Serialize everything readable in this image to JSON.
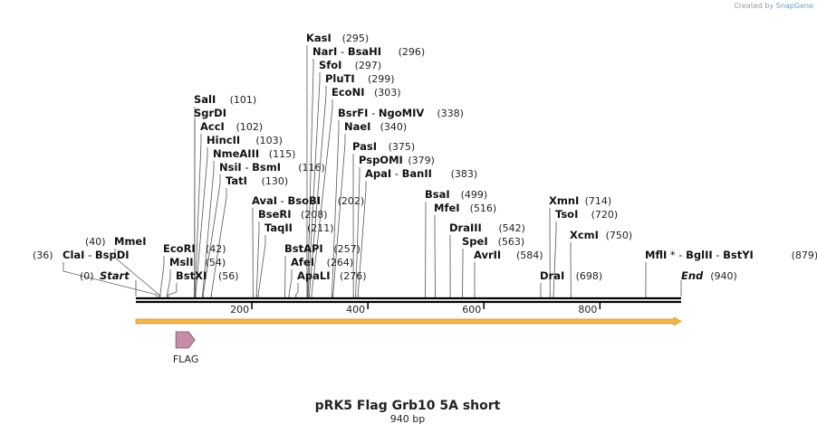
{
  "header": {
    "credit_prefix": "Created by",
    "credit_brand": "SnapGene"
  },
  "sequence": {
    "title": "pRK5 Flag Grb10 5A short",
    "length_label": "940 bp",
    "length_bp": 940
  },
  "axis": {
    "ticks": [
      200,
      400,
      600,
      800
    ]
  },
  "features": [
    {
      "name": "FLAG",
      "start": 58,
      "end": 81,
      "color": "#c48fa6"
    }
  ],
  "sites": [
    {
      "id": "start",
      "parts": [
        {
          "text": "Start",
          "italic": true
        }
      ],
      "position_label": "(0)",
      "bp": 0
    },
    {
      "id": "clai-bspdi",
      "parts": [
        {
          "text": "ClaI"
        },
        {
          "text": " - ",
          "plain": true
        },
        {
          "text": "BspDI"
        }
      ],
      "position_label": "(36)",
      "bp": 36
    },
    {
      "id": "mmei",
      "parts": [
        {
          "text": "MmeI"
        }
      ],
      "position_label": "(40)",
      "bp": 40
    },
    {
      "id": "ecori",
      "parts": [
        {
          "text": "EcoRI"
        }
      ],
      "position_label": "(42)",
      "bp": 42
    },
    {
      "id": "msli",
      "parts": [
        {
          "text": "MslI"
        }
      ],
      "position_label": "(54)",
      "bp": 54
    },
    {
      "id": "bstxi",
      "parts": [
        {
          "text": "BstXI"
        }
      ],
      "position_label": "(56)",
      "bp": 56
    },
    {
      "id": "sali",
      "parts": [
        {
          "text": "SalI"
        }
      ],
      "position_label": "(101)",
      "bp": 101
    },
    {
      "id": "sgrdi",
      "parts": [
        {
          "text": "SgrDI"
        }
      ],
      "position_label": "",
      "bp": 101
    },
    {
      "id": "acci",
      "parts": [
        {
          "text": "AccI"
        }
      ],
      "position_label": "(102)",
      "bp": 102
    },
    {
      "id": "hincii",
      "parts": [
        {
          "text": "HincII"
        }
      ],
      "position_label": "(103)",
      "bp": 103
    },
    {
      "id": "nmeaiii",
      "parts": [
        {
          "text": "NmeAIII"
        }
      ],
      "position_label": "(115)",
      "bp": 115
    },
    {
      "id": "nsii-bsmi",
      "parts": [
        {
          "text": "NsiI"
        },
        {
          "text": " - ",
          "plain": true
        },
        {
          "text": "BsmI"
        }
      ],
      "position_label": "(116)",
      "bp": 116
    },
    {
      "id": "tati",
      "parts": [
        {
          "text": "TatI"
        }
      ],
      "position_label": "(130)",
      "bp": 130
    },
    {
      "id": "avai-bsobi",
      "parts": [
        {
          "text": "AvaI"
        },
        {
          "text": " - ",
          "plain": true
        },
        {
          "text": "BsoBI"
        }
      ],
      "position_label": "(202)",
      "bp": 202
    },
    {
      "id": "bseri",
      "parts": [
        {
          "text": "BseRI"
        }
      ],
      "position_label": "(208)",
      "bp": 208
    },
    {
      "id": "taqii",
      "parts": [
        {
          "text": "TaqII"
        }
      ],
      "position_label": "(211)",
      "bp": 211
    },
    {
      "id": "bstapi",
      "parts": [
        {
          "text": "BstAPI"
        }
      ],
      "position_label": "(257)",
      "bp": 257
    },
    {
      "id": "afei",
      "parts": [
        {
          "text": "AfeI"
        }
      ],
      "position_label": "(264)",
      "bp": 264
    },
    {
      "id": "apali",
      "parts": [
        {
          "text": "ApaLI"
        }
      ],
      "position_label": "(276)",
      "bp": 276
    },
    {
      "id": "kasi",
      "parts": [
        {
          "text": "KasI"
        }
      ],
      "position_label": "(295)",
      "bp": 295
    },
    {
      "id": "nari-bsahi",
      "parts": [
        {
          "text": "NarI"
        },
        {
          "text": " - ",
          "plain": true
        },
        {
          "text": "BsaHI"
        }
      ],
      "position_label": "(296)",
      "bp": 296
    },
    {
      "id": "sfoi",
      "parts": [
        {
          "text": "SfoI"
        }
      ],
      "position_label": "(297)",
      "bp": 297
    },
    {
      "id": "pluti",
      "parts": [
        {
          "text": "PluTI"
        }
      ],
      "position_label": "(299)",
      "bp": 299
    },
    {
      "id": "econi",
      "parts": [
        {
          "text": "EcoNI"
        }
      ],
      "position_label": "(303)",
      "bp": 303
    },
    {
      "id": "bsrfi-ngomiv",
      "parts": [
        {
          "text": "BsrFI"
        },
        {
          "text": " - ",
          "plain": true
        },
        {
          "text": "NgoMIV"
        }
      ],
      "position_label": "(338)",
      "bp": 338
    },
    {
      "id": "naei",
      "parts": [
        {
          "text": "NaeI"
        }
      ],
      "position_label": "(340)",
      "bp": 340
    },
    {
      "id": "pasi",
      "parts": [
        {
          "text": "PasI"
        }
      ],
      "position_label": "(375)",
      "bp": 375
    },
    {
      "id": "pspomi",
      "parts": [
        {
          "text": "PspOMI"
        }
      ],
      "position_label": "(379)",
      "bp": 379
    },
    {
      "id": "apai-banii",
      "parts": [
        {
          "text": "ApaI"
        },
        {
          "text": " - ",
          "plain": true
        },
        {
          "text": "BanII"
        }
      ],
      "position_label": "(383)",
      "bp": 383
    },
    {
      "id": "bsai",
      "parts": [
        {
          "text": "BsaI"
        }
      ],
      "position_label": "(499)",
      "bp": 499
    },
    {
      "id": "mfei",
      "parts": [
        {
          "text": "MfeI"
        }
      ],
      "position_label": "(516)",
      "bp": 516
    },
    {
      "id": "draiii",
      "parts": [
        {
          "text": "DraIII"
        }
      ],
      "position_label": "(542)",
      "bp": 542
    },
    {
      "id": "spei",
      "parts": [
        {
          "text": "SpeI"
        }
      ],
      "position_label": "(563)",
      "bp": 563
    },
    {
      "id": "avrii",
      "parts": [
        {
          "text": "AvrII"
        }
      ],
      "position_label": "(584)",
      "bp": 584
    },
    {
      "id": "drai",
      "parts": [
        {
          "text": "DraI"
        }
      ],
      "position_label": "(698)",
      "bp": 698
    },
    {
      "id": "xmni",
      "parts": [
        {
          "text": "XmnI"
        }
      ],
      "position_label": "(714)",
      "bp": 714
    },
    {
      "id": "tsoi",
      "parts": [
        {
          "text": "TsoI"
        }
      ],
      "position_label": "(720)",
      "bp": 720
    },
    {
      "id": "xcmi",
      "parts": [
        {
          "text": "XcmI"
        }
      ],
      "position_label": "(750)",
      "bp": 750
    },
    {
      "id": "mfli-bglii-bstyi",
      "parts": [
        {
          "text": "MflI"
        },
        {
          "text": " * - ",
          "plain": true
        },
        {
          "text": "BglII"
        },
        {
          "text": " - ",
          "plain": true
        },
        {
          "text": "BstYI"
        }
      ],
      "position_label": "(879)",
      "bp": 879
    },
    {
      "id": "end",
      "parts": [
        {
          "text": "End",
          "italic": true
        }
      ],
      "position_label": "(940)",
      "bp": 940
    }
  ]
}
